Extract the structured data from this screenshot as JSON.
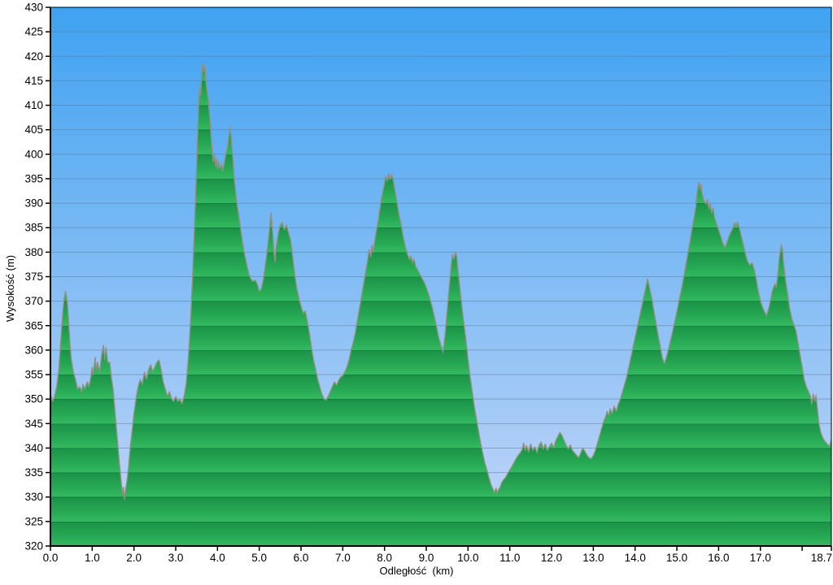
{
  "chart_data": {
    "type": "area",
    "title": "",
    "xlabel": "Odległość  (km)",
    "ylabel": "Wysokość (m)",
    "xlim": [
      0,
      18.7
    ],
    "ylim": [
      320,
      430
    ],
    "grid": true,
    "legend": "none",
    "y_ticks": [
      430,
      425,
      420,
      415,
      410,
      405,
      400,
      395,
      390,
      385,
      380,
      375,
      370,
      365,
      360,
      355,
      350,
      345,
      340,
      335,
      330,
      325,
      320
    ],
    "x_ticks": [
      {
        "v": 0.0,
        "label": "0.0"
      },
      {
        "v": 1.0,
        "label": "1.0"
      },
      {
        "v": 2.0,
        "label": "2.0"
      },
      {
        "v": 3.0,
        "label": "3.0"
      },
      {
        "v": 4.0,
        "label": "4.0"
      },
      {
        "v": 5.0,
        "label": "5.0"
      },
      {
        "v": 6.0,
        "label": "6.0"
      },
      {
        "v": 7.0,
        "label": "7.0"
      },
      {
        "v": 8.0,
        "label": "8.0"
      },
      {
        "v": 9.0,
        "label": "9.0"
      },
      {
        "v": 10.0,
        "label": "10.0"
      },
      {
        "v": 11.0,
        "label": "11.0"
      },
      {
        "v": 12.0,
        "label": "12.0"
      },
      {
        "v": 13.0,
        "label": "13.0"
      },
      {
        "v": 14.0,
        "label": "14.0"
      },
      {
        "v": 15.0,
        "label": "15.0"
      },
      {
        "v": 16.0,
        "label": "16.0"
      },
      {
        "v": 17.0,
        "label": "17.0"
      },
      {
        "v": 18.0,
        "label": ""
      },
      {
        "v": 18.7,
        "label": "18.7"
      }
    ],
    "colors": {
      "sky_top": "#3FA2F1",
      "sky_bottom": "#C5D7F8",
      "band_dark": "#0D7A38",
      "band_mid": "#1C9448",
      "band_light": "#33B95F",
      "outline": "#918E83",
      "gridline": "#5F7D9C",
      "axis": "#000000",
      "text": "#000000"
    },
    "series": [
      {
        "name": "elevation-profile",
        "x": [
          0.0,
          0.05,
          0.1,
          0.15,
          0.2,
          0.25,
          0.3,
          0.33,
          0.36,
          0.4,
          0.43,
          0.47,
          0.5,
          0.55,
          0.6,
          0.65,
          0.7,
          0.75,
          0.78,
          0.82,
          0.88,
          0.92,
          0.97,
          1.0,
          1.03,
          1.07,
          1.1,
          1.13,
          1.17,
          1.2,
          1.23,
          1.27,
          1.3,
          1.33,
          1.37,
          1.42,
          1.45,
          1.5,
          1.55,
          1.6,
          1.65,
          1.7,
          1.73,
          1.75,
          1.77,
          1.8,
          1.83,
          1.87,
          1.9,
          1.95,
          2.0,
          2.05,
          2.1,
          2.15,
          2.2,
          2.25,
          2.3,
          2.35,
          2.4,
          2.45,
          2.5,
          2.55,
          2.6,
          2.65,
          2.7,
          2.75,
          2.8,
          2.85,
          2.9,
          2.95,
          3.0,
          3.05,
          3.1,
          3.15,
          3.2,
          3.25,
          3.3,
          3.35,
          3.4,
          3.45,
          3.5,
          3.53,
          3.55,
          3.58,
          3.6,
          3.62,
          3.65,
          3.68,
          3.7,
          3.72,
          3.75,
          3.78,
          3.8,
          3.83,
          3.85,
          3.88,
          3.9,
          3.93,
          3.95,
          3.98,
          4.0,
          4.03,
          4.05,
          4.1,
          4.12,
          4.15,
          4.18,
          4.2,
          4.25,
          4.3,
          4.33,
          4.37,
          4.4,
          4.45,
          4.5,
          4.55,
          4.6,
          4.65,
          4.7,
          4.75,
          4.8,
          4.85,
          4.9,
          4.95,
          5.0,
          5.05,
          5.1,
          5.15,
          5.2,
          5.25,
          5.28,
          5.3,
          5.33,
          5.35,
          5.38,
          5.4,
          5.45,
          5.5,
          5.55,
          5.6,
          5.65,
          5.7,
          5.75,
          5.8,
          5.85,
          5.9,
          5.95,
          6.0,
          6.05,
          6.1,
          6.15,
          6.2,
          6.25,
          6.3,
          6.35,
          6.4,
          6.45,
          6.5,
          6.55,
          6.6,
          6.65,
          6.7,
          6.75,
          6.8,
          6.85,
          6.9,
          6.95,
          7.0,
          7.05,
          7.1,
          7.15,
          7.2,
          7.25,
          7.3,
          7.35,
          7.4,
          7.45,
          7.5,
          7.55,
          7.6,
          7.63,
          7.67,
          7.7,
          7.73,
          7.77,
          7.8,
          7.85,
          7.9,
          7.95,
          8.0,
          8.03,
          8.07,
          8.1,
          8.13,
          8.17,
          8.2,
          8.23,
          8.27,
          8.3,
          8.35,
          8.4,
          8.45,
          8.5,
          8.55,
          8.6,
          8.63,
          8.67,
          8.7,
          8.75,
          8.8,
          8.85,
          8.9,
          8.95,
          9.0,
          9.05,
          9.1,
          9.15,
          9.2,
          9.25,
          9.3,
          9.35,
          9.4,
          9.45,
          9.5,
          9.55,
          9.6,
          9.63,
          9.66,
          9.7,
          9.73,
          9.75,
          9.8,
          9.85,
          9.9,
          9.95,
          10.0,
          10.05,
          10.1,
          10.15,
          10.2,
          10.25,
          10.3,
          10.35,
          10.4,
          10.45,
          10.5,
          10.55,
          10.6,
          10.63,
          10.67,
          10.7,
          10.73,
          10.77,
          10.8,
          10.85,
          10.9,
          10.95,
          11.0,
          11.05,
          11.1,
          11.15,
          11.2,
          11.25,
          11.3,
          11.33,
          11.37,
          11.4,
          11.45,
          11.5,
          11.55,
          11.6,
          11.65,
          11.7,
          11.75,
          11.8,
          11.85,
          11.9,
          11.95,
          12.0,
          12.05,
          12.1,
          12.15,
          12.2,
          12.25,
          12.3,
          12.35,
          12.4,
          12.45,
          12.5,
          12.55,
          12.6,
          12.65,
          12.7,
          12.75,
          12.8,
          12.85,
          12.9,
          12.95,
          13.0,
          13.05,
          13.1,
          13.15,
          13.2,
          13.25,
          13.3,
          13.33,
          13.37,
          13.4,
          13.45,
          13.5,
          13.55,
          13.6,
          13.65,
          13.7,
          13.75,
          13.8,
          13.85,
          13.9,
          13.95,
          14.0,
          14.05,
          14.1,
          14.15,
          14.2,
          14.25,
          14.3,
          14.35,
          14.4,
          14.45,
          14.5,
          14.55,
          14.6,
          14.65,
          14.7,
          14.75,
          14.8,
          14.85,
          14.9,
          14.95,
          15.0,
          15.05,
          15.1,
          15.15,
          15.2,
          15.25,
          15.3,
          15.35,
          15.4,
          15.45,
          15.48,
          15.5,
          15.53,
          15.55,
          15.58,
          15.6,
          15.65,
          15.7,
          15.73,
          15.77,
          15.8,
          15.83,
          15.87,
          15.9,
          15.95,
          16.0,
          16.05,
          16.1,
          16.15,
          16.2,
          16.25,
          16.3,
          16.35,
          16.38,
          16.42,
          16.45,
          16.5,
          16.55,
          16.6,
          16.65,
          16.7,
          16.75,
          16.8,
          16.85,
          16.9,
          16.95,
          17.0,
          17.05,
          17.1,
          17.15,
          17.2,
          17.25,
          17.3,
          17.35,
          17.38,
          17.42,
          17.45,
          17.5,
          17.53,
          17.55,
          17.6,
          17.65,
          17.7,
          17.75,
          17.8,
          17.85,
          17.9,
          17.95,
          18.0,
          18.05,
          18.1,
          18.15,
          18.2,
          18.23,
          18.27,
          18.3,
          18.33,
          18.37,
          18.4,
          18.45,
          18.5,
          18.55,
          18.6,
          18.65,
          18.7
        ],
        "y": [
          351,
          349.5,
          350.5,
          352.5,
          356,
          362,
          368,
          370.5,
          372,
          370,
          366.5,
          361,
          358,
          355.5,
          354,
          352,
          352.5,
          351.5,
          353,
          352,
          353.5,
          352.5,
          354.5,
          356.5,
          355,
          358.5,
          356,
          357.5,
          355.5,
          357,
          359,
          361,
          358,
          360.5,
          357.5,
          357.5,
          355,
          352,
          347,
          342,
          337,
          332.5,
          330.5,
          332,
          329.5,
          331.5,
          333,
          336,
          339,
          343,
          347,
          350,
          352.5,
          354,
          353,
          355.5,
          354,
          356,
          357,
          355.5,
          356.5,
          357.5,
          358,
          356,
          353.5,
          352,
          350.5,
          351.5,
          350,
          349.5,
          350.5,
          349.5,
          350,
          349,
          350.5,
          353,
          358,
          365,
          374,
          385,
          397,
          405,
          410,
          414,
          412,
          416,
          418.5,
          417,
          418,
          415,
          413,
          411,
          409,
          406,
          403,
          400,
          398.5,
          400,
          397.5,
          399,
          397,
          398.5,
          397,
          398,
          396.5,
          397.5,
          399,
          400,
          402,
          405.5,
          403,
          399,
          395,
          391,
          388,
          385,
          382,
          379.5,
          377.5,
          375.5,
          374.5,
          374,
          374.3,
          373.5,
          372,
          372.5,
          374.5,
          377.5,
          381,
          385,
          388,
          386,
          383,
          380,
          378,
          380.5,
          383.5,
          385.5,
          386,
          384.5,
          385.5,
          384,
          382.5,
          379,
          375.5,
          372.5,
          370.5,
          369,
          367.5,
          368,
          366,
          363.5,
          360.5,
          358,
          356,
          354,
          352.5,
          351,
          350,
          349.8,
          350.5,
          351.5,
          352.5,
          353.5,
          352.8,
          353.8,
          354.5,
          354.8,
          355.5,
          356.5,
          358,
          360,
          361.5,
          363.5,
          366,
          368.5,
          371,
          373.5,
          376,
          378.5,
          380.5,
          379,
          381.5,
          380,
          382.5,
          384,
          386.5,
          389.5,
          392,
          394,
          395.5,
          394.5,
          396,
          394.8,
          395.8,
          395,
          393.5,
          391.5,
          390,
          387.5,
          385.5,
          383,
          381,
          379.5,
          378.5,
          379.2,
          377.8,
          378.6,
          377,
          376.2,
          375.4,
          374.6,
          373.8,
          372.8,
          371.5,
          370,
          368.5,
          366.5,
          364.5,
          362.5,
          361,
          359.5,
          363,
          368,
          373,
          377.5,
          379.5,
          378.5,
          380,
          379,
          377,
          373,
          369,
          365.5,
          362,
          358,
          354.5,
          351.5,
          348.5,
          346,
          343.5,
          341,
          339,
          337,
          335.5,
          334,
          332.5,
          331.5,
          330.8,
          331.8,
          330.7,
          331.5,
          332,
          332.8,
          333.5,
          334,
          334.8,
          335.5,
          336.2,
          337,
          337.8,
          338.5,
          339,
          339.8,
          341,
          339.5,
          340.5,
          339.2,
          340.8,
          339.5,
          340.2,
          339,
          340.5,
          341.2,
          339.8,
          340.8,
          339.5,
          340.3,
          341,
          340,
          341.5,
          342.3,
          343.2,
          342.5,
          341.5,
          340.5,
          339.8,
          340.6,
          339.5,
          339,
          338.5,
          338,
          339,
          340,
          339.3,
          338.5,
          338,
          337.8,
          338.5,
          339.5,
          341,
          342.5,
          344,
          345.5,
          346.5,
          347.5,
          346.5,
          348,
          347,
          348.5,
          347.5,
          349,
          350,
          351.5,
          353,
          354.5,
          356.5,
          358.5,
          360.5,
          362.5,
          364.5,
          366.5,
          368.5,
          370.5,
          372.5,
          374.5,
          372.5,
          370.5,
          368,
          365.5,
          363,
          360.8,
          358.5,
          357.2,
          358.5,
          360.2,
          362,
          363.8,
          365.8,
          367.8,
          370,
          372,
          374.2,
          376.5,
          379,
          381.5,
          384,
          386.5,
          389,
          391.5,
          393,
          394.3,
          392.8,
          393.8,
          392,
          390.5,
          389.8,
          390.8,
          388.8,
          389.8,
          388,
          389,
          387,
          385.8,
          384.5,
          383.2,
          381.8,
          380.8,
          382,
          383.3,
          384.2,
          385,
          386,
          385,
          386.2,
          384.8,
          383,
          381.2,
          379.3,
          378,
          377.3,
          377.8,
          376.5,
          374.5,
          372,
          370,
          368.8,
          367.8,
          367,
          368.5,
          370.5,
          372.5,
          373.5,
          372.8,
          375.5,
          378.5,
          381.5,
          380.5,
          378,
          374.5,
          371.5,
          368.5,
          366.5,
          365.2,
          364,
          361.5,
          359,
          356.5,
          354,
          352.5,
          351.5,
          350.5,
          349,
          351,
          349.5,
          350.8,
          347.5,
          345,
          343,
          342,
          341.3,
          340.8,
          340.3,
          341.5
        ]
      }
    ]
  }
}
